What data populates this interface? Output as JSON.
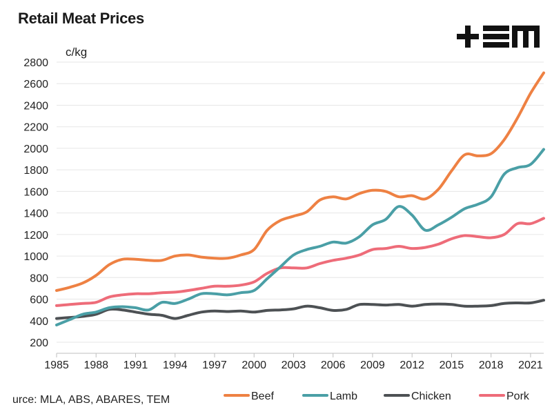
{
  "chart_data": {
    "type": "line",
    "title": "Retail Meat Prices",
    "ylabel": "c/kg",
    "xlabel": "",
    "ylim": [
      200,
      2800
    ],
    "xlim": [
      1985,
      2022
    ],
    "yticks": [
      200,
      400,
      600,
      800,
      1000,
      1200,
      1400,
      1600,
      1800,
      2000,
      2200,
      2400,
      2600,
      2800
    ],
    "xticks": [
      1985,
      1988,
      1991,
      1994,
      1997,
      2000,
      2003,
      2006,
      2009,
      2012,
      2015,
      2018,
      2021
    ],
    "x": [
      1985,
      1986,
      1987,
      1988,
      1989,
      1990,
      1991,
      1992,
      1993,
      1994,
      1995,
      1996,
      1997,
      1998,
      1999,
      2000,
      2001,
      2002,
      2003,
      2004,
      2005,
      2006,
      2007,
      2008,
      2009,
      2010,
      2011,
      2012,
      2013,
      2014,
      2015,
      2016,
      2017,
      2018,
      2019,
      2020,
      2021,
      2022
    ],
    "series": [
      {
        "name": "Beef",
        "color": "#ee8143",
        "values": [
          680,
          710,
          750,
          820,
          920,
          970,
          970,
          960,
          960,
          1000,
          1010,
          990,
          980,
          980,
          1010,
          1060,
          1240,
          1330,
          1370,
          1410,
          1520,
          1550,
          1530,
          1580,
          1610,
          1600,
          1550,
          1560,
          1530,
          1620,
          1790,
          1940,
          1930,
          1950,
          2080,
          2280,
          2510,
          2700
        ]
      },
      {
        "name": "Lamb",
        "color": "#4a9fa6",
        "values": [
          360,
          410,
          460,
          480,
          520,
          530,
          520,
          500,
          570,
          560,
          600,
          650,
          650,
          640,
          660,
          680,
          790,
          900,
          1010,
          1060,
          1090,
          1130,
          1120,
          1180,
          1290,
          1340,
          1460,
          1380,
          1240,
          1290,
          1360,
          1440,
          1480,
          1550,
          1760,
          1820,
          1850,
          1990
        ]
      },
      {
        "name": "Chicken",
        "color": "#4d5154",
        "values": [
          420,
          430,
          440,
          460,
          505,
          500,
          480,
          460,
          450,
          420,
          450,
          480,
          490,
          485,
          490,
          480,
          495,
          500,
          510,
          535,
          520,
          495,
          505,
          550,
          550,
          545,
          550,
          535,
          550,
          555,
          550,
          535,
          535,
          540,
          560,
          565,
          565,
          590
        ]
      },
      {
        "name": "Pork",
        "color": "#ee6c79",
        "values": [
          540,
          550,
          560,
          570,
          620,
          640,
          650,
          650,
          660,
          665,
          680,
          700,
          720,
          720,
          730,
          760,
          840,
          890,
          890,
          890,
          930,
          960,
          980,
          1010,
          1060,
          1070,
          1090,
          1070,
          1080,
          1110,
          1160,
          1190,
          1180,
          1170,
          1200,
          1300,
          1300,
          1350
        ]
      }
    ]
  },
  "source_text": "urce: MLA, ABS, ABARES, TEM",
  "logo_text": "+EM"
}
